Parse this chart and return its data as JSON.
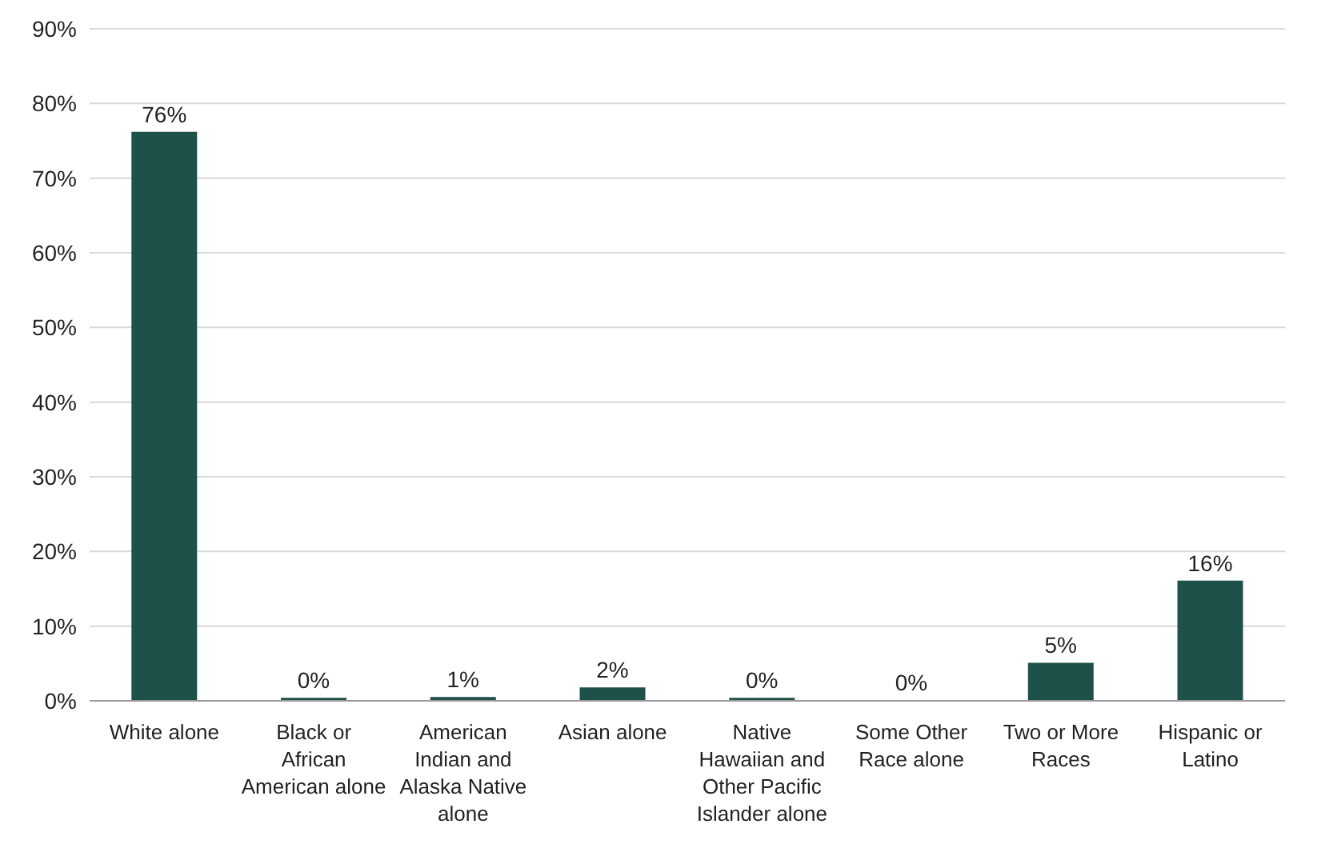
{
  "chart_data": {
    "type": "bar",
    "categories": [
      "White alone",
      "Black or African American alone",
      "American Indian and Alaska Native alone",
      "Asian alone",
      "Native Hawaiian and Other Pacific Islander alone",
      "Some Other Race alone",
      "Two or More Races",
      "Hispanic or Latino"
    ],
    "values": [
      76.2,
      0.4,
      0.5,
      1.8,
      0.4,
      0.1,
      5.1,
      16.1
    ],
    "value_labels": [
      "76%",
      "0%",
      "1%",
      "2%",
      "0%",
      "0%",
      "5%",
      "16%"
    ],
    "color": "#1e5149",
    "ylim": [
      0,
      90
    ],
    "yticks": [
      {
        "value": 0,
        "label": "0%"
      },
      {
        "value": 10,
        "label": "10%"
      },
      {
        "value": 20,
        "label": "20%"
      },
      {
        "value": 30,
        "label": "30%"
      },
      {
        "value": 40,
        "label": "40%"
      },
      {
        "value": 50,
        "label": "50%"
      },
      {
        "value": 60,
        "label": "60%"
      },
      {
        "value": 70,
        "label": "70%"
      },
      {
        "value": 80,
        "label": "80%"
      },
      {
        "value": 90,
        "label": "90%"
      }
    ],
    "grid": "y"
  }
}
